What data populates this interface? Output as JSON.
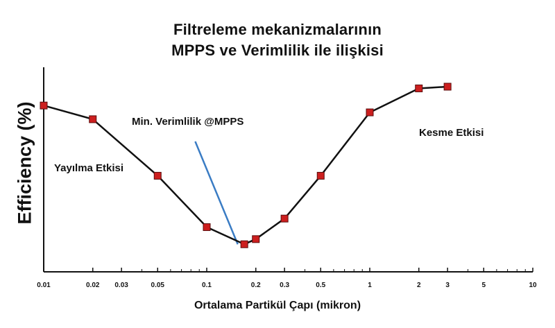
{
  "chart_data": {
    "type": "line",
    "title": [
      "Filtreleme mekanizmalarının",
      "MPPS ve Verimlilik ile ilişkisi"
    ],
    "xlabel": "Ortalama Partikül Çapı (mikron)",
    "ylabel": "Efficiency (%)",
    "x_scale": "log",
    "xlim": [
      0.01,
      10
    ],
    "ylim": [
      0,
      100
    ],
    "grid": false,
    "xticks": [
      {
        "value": 0.01,
        "label": "0.01"
      },
      {
        "value": 0.02,
        "label": "0.02"
      },
      {
        "value": 0.03,
        "label": "0.03"
      },
      {
        "value": 0.05,
        "label": "0.05"
      },
      {
        "value": 0.1,
        "label": "0.1"
      },
      {
        "value": 0.2,
        "label": "0.2"
      },
      {
        "value": 0.3,
        "label": "0.3"
      },
      {
        "value": 0.5,
        "label": "0.5"
      },
      {
        "value": 1,
        "label": "1"
      },
      {
        "value": 2,
        "label": "2"
      },
      {
        "value": 3,
        "label": "3"
      },
      {
        "value": 5,
        "label": "5"
      },
      {
        "value": 10,
        "label": "10"
      }
    ],
    "minor_ticks": [
      0.04,
      0.06,
      0.07,
      0.08,
      0.09,
      0.4,
      0.6,
      0.7,
      0.8,
      0.9,
      4,
      6,
      7,
      8,
      9
    ],
    "series": [
      {
        "color": "#cc1f1f",
        "line_color": "#111111",
        "x": [
          0.01,
          0.02,
          0.05,
          0.1,
          0.17,
          0.2,
          0.3,
          0.5,
          1,
          2,
          3
        ],
        "y": [
          89,
          81,
          48,
          18,
          8,
          11,
          23,
          48,
          85,
          99,
          100
        ]
      }
    ],
    "annotations": [
      {
        "text": "Min. Verimlilik @MPPS",
        "arrow_color": "#3a7cc4",
        "arrow_from": [
          0.085,
          68
        ],
        "arrow_to": [
          0.155,
          8
        ]
      },
      {
        "text": "Yayılma Etkisi"
      },
      {
        "text": "Kesme Etkisi"
      }
    ]
  }
}
